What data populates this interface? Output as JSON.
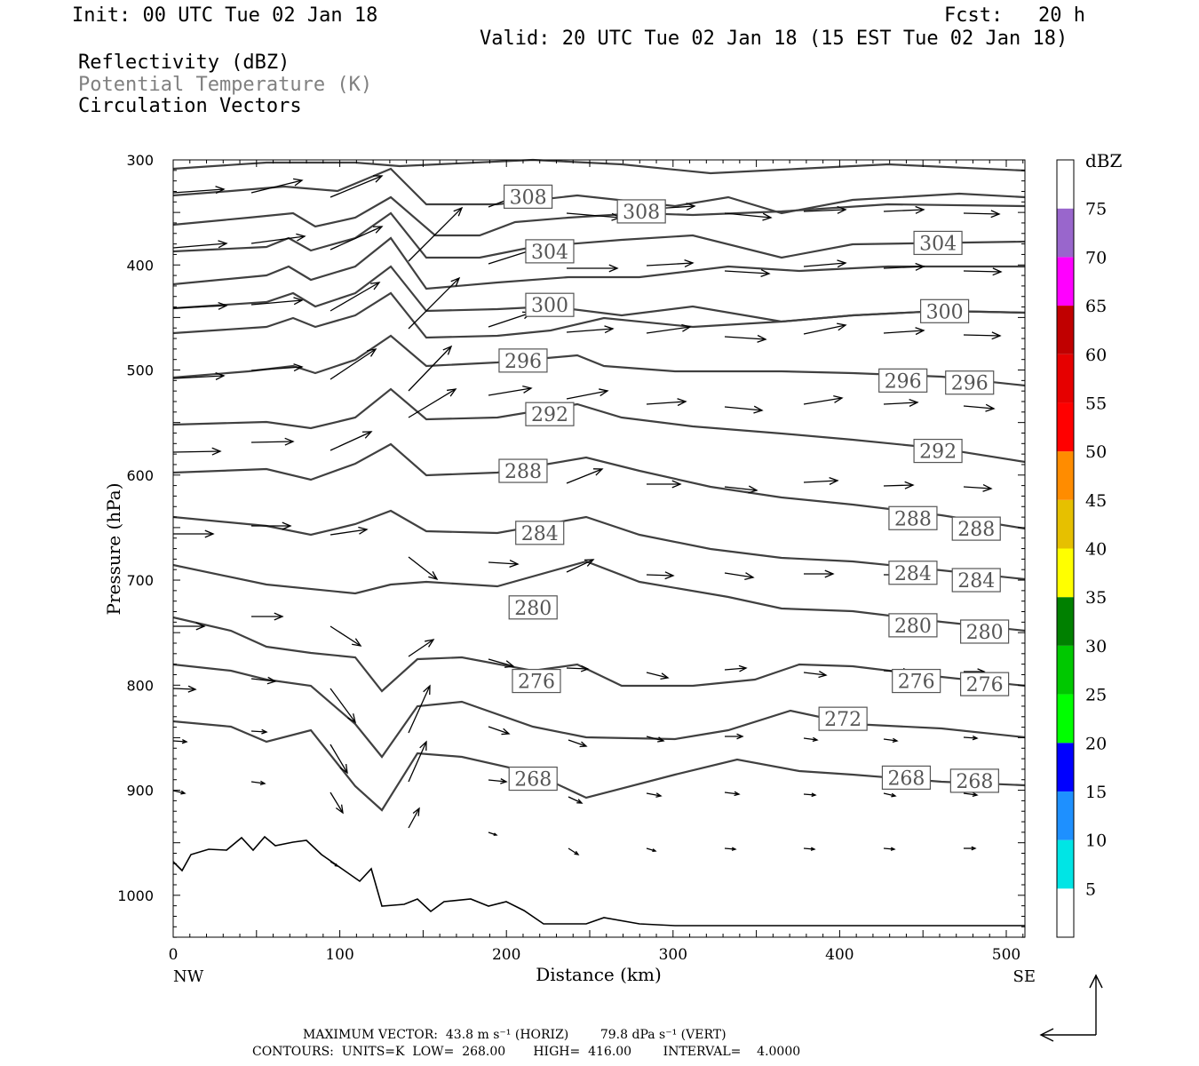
{
  "header": {
    "init": "Init: 00 UTC Tue 02 Jan 18",
    "fcst": "Fcst:   20 h",
    "valid": "Valid: 20 UTC Tue 02 Jan 18 (15 EST Tue 02 Jan 18)"
  },
  "fields": [
    {
      "label": "Reflectivity (dBZ)",
      "color": "#000000"
    },
    {
      "label": "Potential Temperature (K)",
      "color": "#808080"
    },
    {
      "label": "Circulation Vectors",
      "color": "#000000"
    }
  ],
  "chart_data": {
    "type": "line",
    "xlabel": "Distance (km)",
    "ylabel": "Pressure (hPa)",
    "xlim": [
      0,
      512
    ],
    "ylim": [
      1040,
      300
    ],
    "x_ticks": [
      0,
      100,
      200,
      300,
      400,
      500
    ],
    "y_ticks": [
      300,
      400,
      500,
      600,
      700,
      800,
      900,
      1000
    ],
    "x_end_labels": {
      "left": "NW",
      "right": "SE"
    },
    "contour_labels": [
      {
        "text": "308",
        "x": 213,
        "p": 335
      },
      {
        "text": "308",
        "x": 281,
        "p": 349
      },
      {
        "text": "304",
        "x": 226,
        "p": 387
      },
      {
        "text": "304",
        "x": 459,
        "p": 379
      },
      {
        "text": "300",
        "x": 226,
        "p": 438
      },
      {
        "text": "300",
        "x": 463,
        "p": 444
      },
      {
        "text": "296",
        "x": 210,
        "p": 491
      },
      {
        "text": "296",
        "x": 438,
        "p": 510
      },
      {
        "text": "296",
        "x": 478,
        "p": 512
      },
      {
        "text": "292",
        "x": 226,
        "p": 542
      },
      {
        "text": "292",
        "x": 459,
        "p": 577
      },
      {
        "text": "288",
        "x": 210,
        "p": 596
      },
      {
        "text": "288",
        "x": 444,
        "p": 641
      },
      {
        "text": "288",
        "x": 482,
        "p": 651
      },
      {
        "text": "284",
        "x": 220,
        "p": 655
      },
      {
        "text": "284",
        "x": 444,
        "p": 693
      },
      {
        "text": "284",
        "x": 482,
        "p": 700
      },
      {
        "text": "280",
        "x": 216,
        "p": 726
      },
      {
        "text": "280",
        "x": 444,
        "p": 743
      },
      {
        "text": "280",
        "x": 487,
        "p": 749
      },
      {
        "text": "276",
        "x": 218,
        "p": 796
      },
      {
        "text": "276",
        "x": 446,
        "p": 796
      },
      {
        "text": "276",
        "x": 487,
        "p": 799
      },
      {
        "text": "272",
        "x": 402,
        "p": 832
      },
      {
        "text": "268",
        "x": 216,
        "p": 889
      },
      {
        "text": "268",
        "x": 440,
        "p": 888
      },
      {
        "text": "268",
        "x": 481,
        "p": 891
      }
    ],
    "colorbar": {
      "title": "dBZ",
      "levels": [
        5,
        10,
        15,
        20,
        25,
        30,
        35,
        40,
        45,
        50,
        55,
        60,
        65,
        70,
        75
      ],
      "colors": [
        "#00e5e5",
        "#1e90ff",
        "#0000ff",
        "#00ff00",
        "#00c800",
        "#008000",
        "#ffff00",
        "#e6c000",
        "#ff8c00",
        "#ff0000",
        "#e60000",
        "#c00000",
        "#ff00ff",
        "#9966cc",
        "#ffffff"
      ]
    }
  },
  "footer": {
    "max_vector": "MAXIMUM VECTOR:  43.8 m s⁻¹ (HORIZ)        79.8 dPa s⁻¹ (VERT)",
    "contours": "CONTOURS:  UNITS=K  LOW=  268.00       HIGH=  416.00        INTERVAL=    4.0000"
  }
}
